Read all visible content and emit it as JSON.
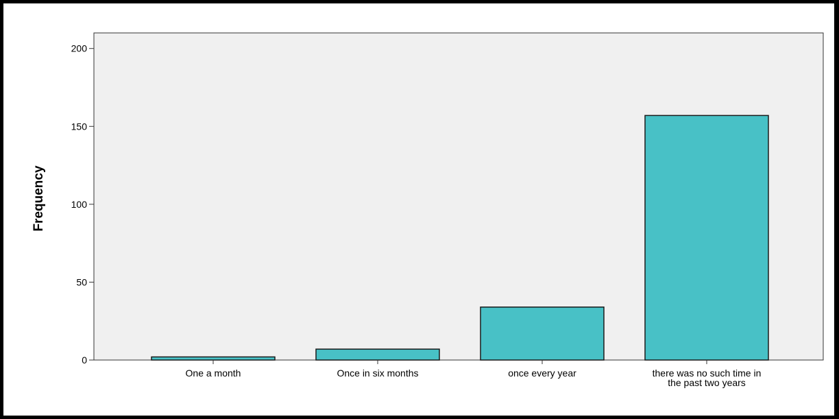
{
  "chart_data": {
    "type": "bar",
    "title": "",
    "xlabel": "",
    "ylabel": "Frequency",
    "ylim": [
      0,
      210
    ],
    "yticks": [
      0,
      50,
      100,
      150,
      200
    ],
    "categories": [
      [
        "One a month"
      ],
      [
        "Once in six months"
      ],
      [
        "once every year"
      ],
      [
        "there was no such time in",
        "the past two years"
      ]
    ],
    "values": [
      2,
      7,
      34,
      157
    ],
    "grid": false,
    "legend": "none",
    "colors": {
      "bar_fill": "#48c1c6",
      "bar_stroke": "#1a1a1a",
      "plot_background": "#f0f0f0",
      "axis": "#333333"
    }
  }
}
